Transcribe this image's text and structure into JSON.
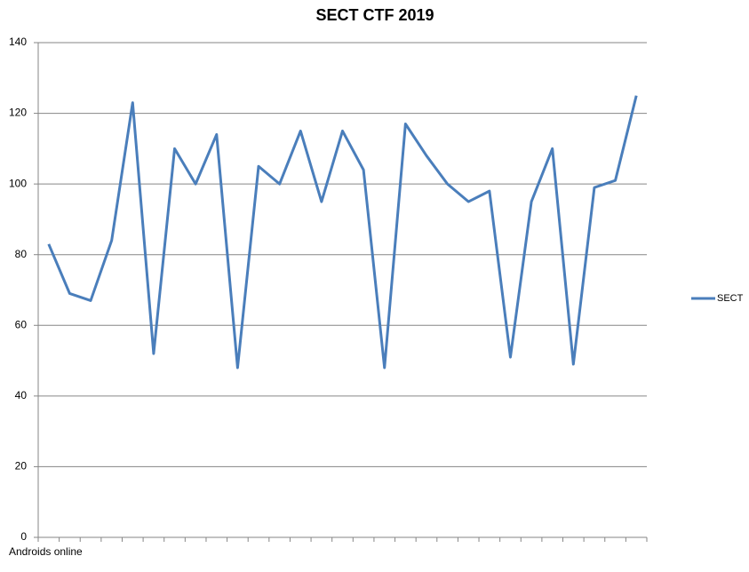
{
  "chart_data": {
    "type": "line",
    "title": "SECT CTF 2019",
    "x_label": "Androids online",
    "categories": [
      null,
      null,
      null,
      null,
      null,
      null,
      null,
      null,
      null,
      null,
      null,
      null,
      null,
      null,
      null,
      null,
      null,
      null,
      null,
      null,
      null,
      null,
      null,
      null,
      null,
      null,
      null,
      null,
      null
    ],
    "series": [
      {
        "name": "SECT",
        "color": "#4a7ebb",
        "values": [
          83,
          69,
          67,
          84,
          123,
          52,
          110,
          100,
          114,
          48,
          105,
          100,
          115,
          95,
          115,
          104,
          48,
          117,
          108,
          100,
          95,
          98,
          51,
          95,
          110,
          49,
          99,
          101,
          125
        ]
      }
    ],
    "ylim": [
      0,
      140
    ],
    "yticks": [
      0,
      20,
      40,
      60,
      80,
      100,
      120,
      140
    ],
    "grid": true,
    "legend": "right"
  }
}
